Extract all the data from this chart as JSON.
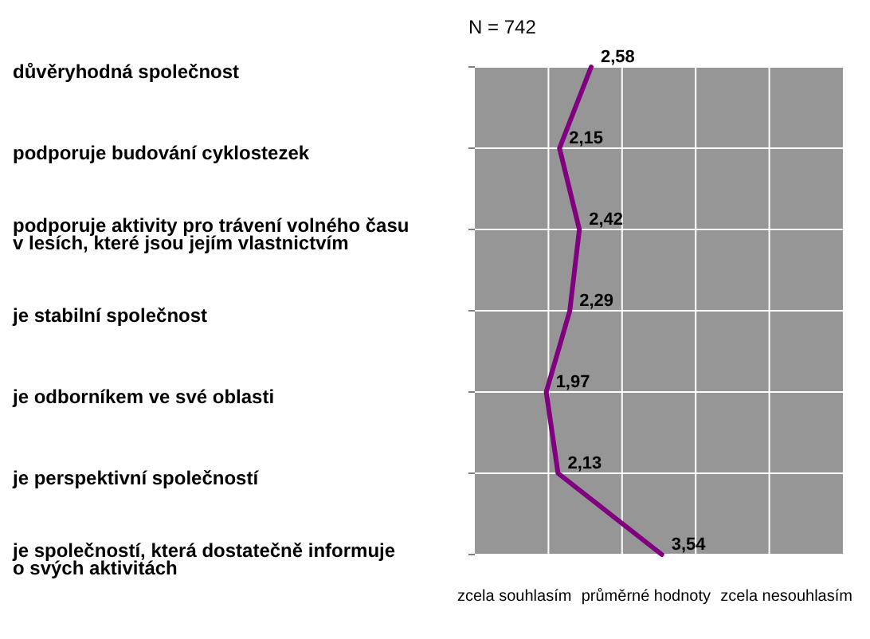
{
  "chart_data": {
    "type": "line",
    "title": "N = 742",
    "categories": [
      "důvěryhodná společnost",
      "podporuje budování cyklostezek",
      "podporuje aktivity pro trávení volného času\nv lesích, které jsou jejím vlastnictvím",
      "je stabilní společnost",
      "je odborníkem ve své oblasti",
      "je perspektivní společností",
      "je společností, která dostatečně informuje\no svých aktivitách"
    ],
    "values": [
      2.58,
      2.15,
      2.42,
      2.29,
      1.97,
      2.13,
      3.54
    ],
    "value_labels": [
      "2,58",
      "2,15",
      "2,42",
      "2,29",
      "1,97",
      "2,13",
      "3,54"
    ],
    "color": "#800080",
    "orientation": "horizontal",
    "xlim": [
      1,
      6
    ],
    "xticks": [
      {
        "value": 2,
        "label": null
      },
      {
        "value": 3,
        "label": null
      },
      {
        "value": 4,
        "label": null
      },
      {
        "value": 5,
        "label": null
      }
    ],
    "tick_labels": "y",
    "grid": true,
    "annotations": [
      "zcela souhlasím",
      "průměrné hodnoty",
      "zcela nesouhlasím"
    ]
  }
}
